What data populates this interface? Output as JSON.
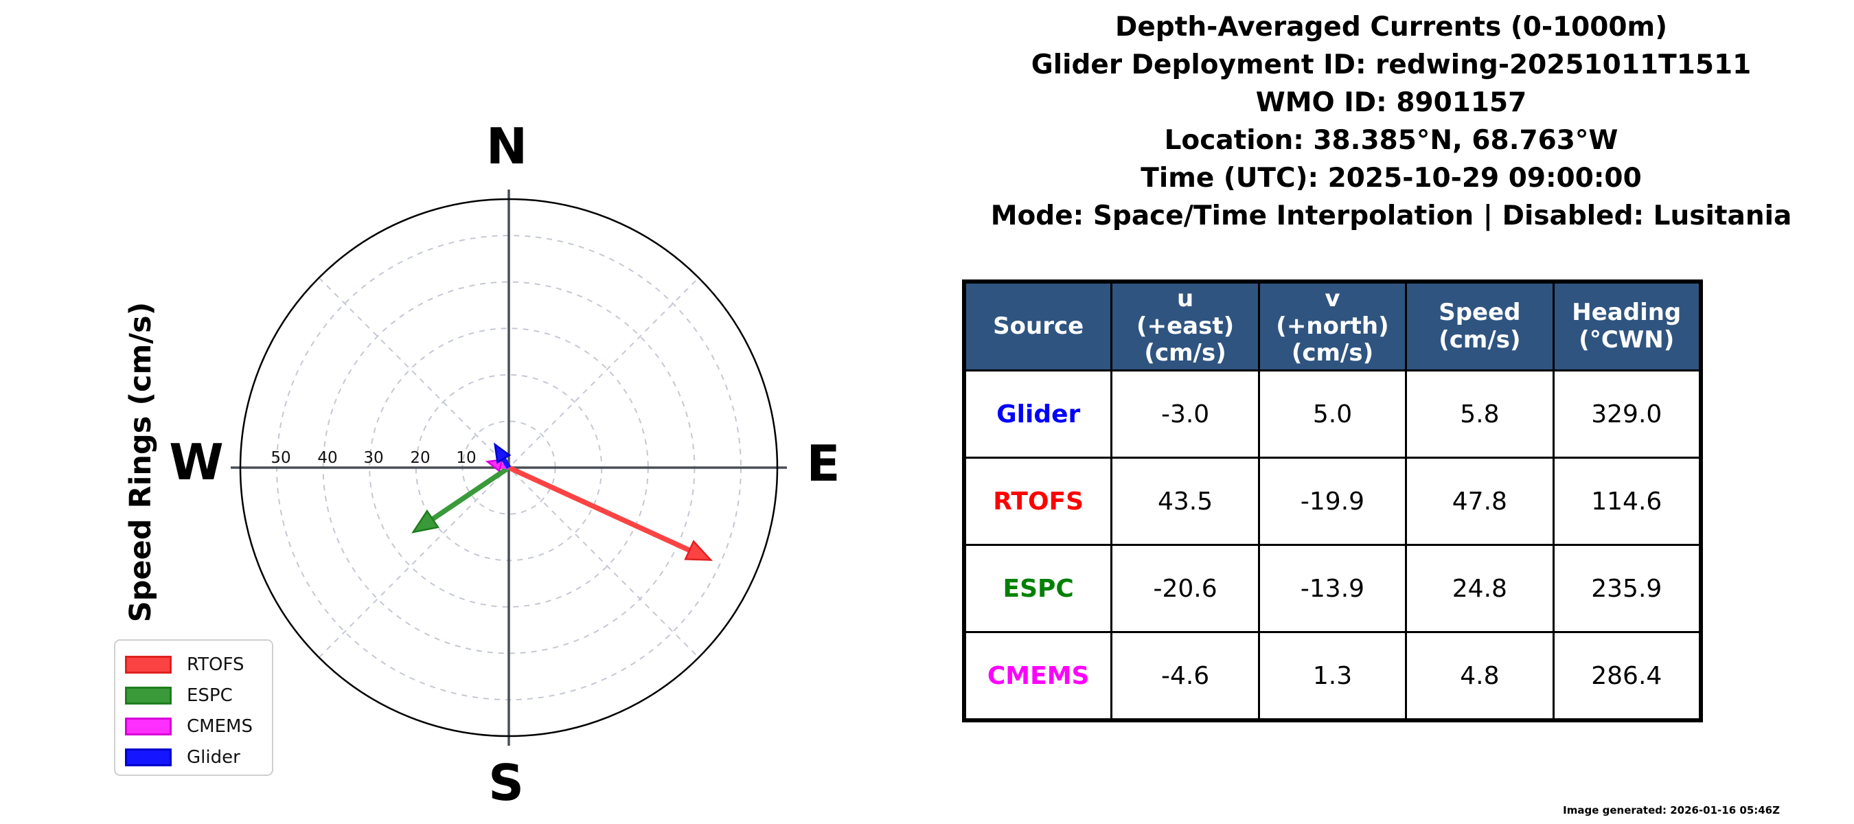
{
  "title_block": {
    "lines": [
      "Depth-Averaged Currents (0-1000m)",
      "Glider Deployment ID: redwing-20251011T1511",
      "WMO ID: 8901157",
      "Location: 38.385°N, 68.763°W",
      "Time (UTC): 2025-10-29 09:00:00",
      "Mode: Space/Time Interpolation | Disabled: Lusitania"
    ]
  },
  "compass": {
    "ylabel": "Speed Rings (cm/s)",
    "cardinal": {
      "north": "N",
      "east": "E",
      "south": "S",
      "west": "W"
    },
    "ring_labels": [
      "10",
      "20",
      "30",
      "40",
      "50"
    ]
  },
  "legend": {
    "items": [
      {
        "label": "RTOFS",
        "fill": "#fb4343",
        "edge": "#e02020"
      },
      {
        "label": "ESPC",
        "fill": "#3a9a3a",
        "edge": "#1e7d1e"
      },
      {
        "label": "CMEMS",
        "fill": "#ff30ff",
        "edge": "#d800d8"
      },
      {
        "label": "Glider",
        "fill": "#1515ff",
        "edge": "#0000cc"
      }
    ]
  },
  "table": {
    "headers": [
      "Source",
      "u\n(+east)\n(cm/s)",
      "v\n(+north)\n(cm/s)",
      "Speed\n(cm/s)",
      "Heading\n(°CWN)"
    ],
    "rows": [
      {
        "source": "Glider",
        "color": "#0000ff",
        "u": "-3.0",
        "v": "5.0",
        "speed": "5.8",
        "heading": "329.0"
      },
      {
        "source": "RTOFS",
        "color": "#ff0000",
        "u": "43.5",
        "v": "-19.9",
        "speed": "47.8",
        "heading": "114.6"
      },
      {
        "source": "ESPC",
        "color": "#008000",
        "u": "-20.6",
        "v": "-13.9",
        "speed": "24.8",
        "heading": "235.9"
      },
      {
        "source": "CMEMS",
        "color": "#ff00ff",
        "u": "-4.6",
        "v": "1.3",
        "speed": "4.8",
        "heading": "286.4"
      }
    ]
  },
  "footer": {
    "generated": "Image generated: 2026-01-16 05:46Z"
  },
  "chart_data": {
    "type": "vector",
    "title": "Depth-Averaged Currents (0-1000m)",
    "axis": {
      "style": "polar compass, N up, E right",
      "ylabel": "Speed Rings (cm/s)",
      "ring_ticks_cm_per_s": [
        10,
        20,
        30,
        40,
        50
      ],
      "rmax_cm_per_s": 57.8,
      "grid": "dashed light-gray speed rings and 45-degree spokes; solid N-S and E-W axes",
      "cardinal_labels": [
        "N",
        "E",
        "S",
        "W"
      ],
      "legend_position": "lower left"
    },
    "series": [
      {
        "name": "RTOFS",
        "u_cm_s": 43.5,
        "v_cm_s": -19.9,
        "speed_cm_s": 47.8,
        "heading_deg_cwn": 114.6,
        "color": "#fb4343",
        "edge": "#e02020"
      },
      {
        "name": "ESPC",
        "u_cm_s": -20.6,
        "v_cm_s": -13.9,
        "speed_cm_s": 24.8,
        "heading_deg_cwn": 235.9,
        "color": "#3a9a3a",
        "edge": "#1e7d1e"
      },
      {
        "name": "CMEMS",
        "u_cm_s": -4.6,
        "v_cm_s": 1.3,
        "speed_cm_s": 4.8,
        "heading_deg_cwn": 286.4,
        "color": "#ff30ff",
        "edge": "#d800d8"
      },
      {
        "name": "Glider",
        "u_cm_s": -3.0,
        "v_cm_s": 5.0,
        "speed_cm_s": 5.8,
        "heading_deg_cwn": 329.0,
        "color": "#1515ff",
        "edge": "#0000cc"
      }
    ]
  }
}
